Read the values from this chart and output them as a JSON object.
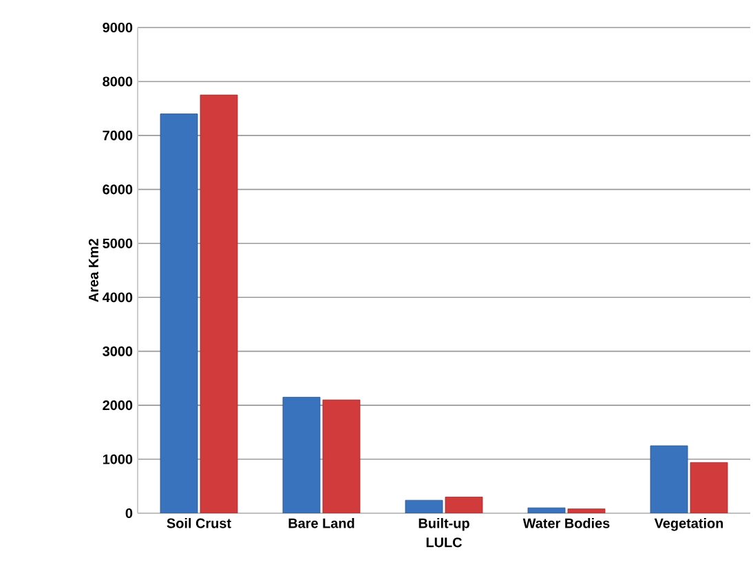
{
  "chart_data": {
    "type": "bar",
    "xlabel": "LULC",
    "ylabel": "Area Km2",
    "categories": [
      "Soil Crust",
      "Bare Land",
      "Built-up",
      "Water Bodies",
      "Vegetation"
    ],
    "series": [
      {
        "color": "#3a73bd",
        "values": [
          7400,
          2150,
          240,
          100,
          1250
        ]
      },
      {
        "color": "#d23b3b",
        "values": [
          7750,
          2100,
          300,
          80,
          940
        ]
      }
    ],
    "ylim": [
      0,
      9000
    ],
    "yticks": [
      0,
      1000,
      2000,
      3000,
      4000,
      5000,
      6000,
      7000,
      8000,
      9000
    ],
    "grid": "y"
  }
}
